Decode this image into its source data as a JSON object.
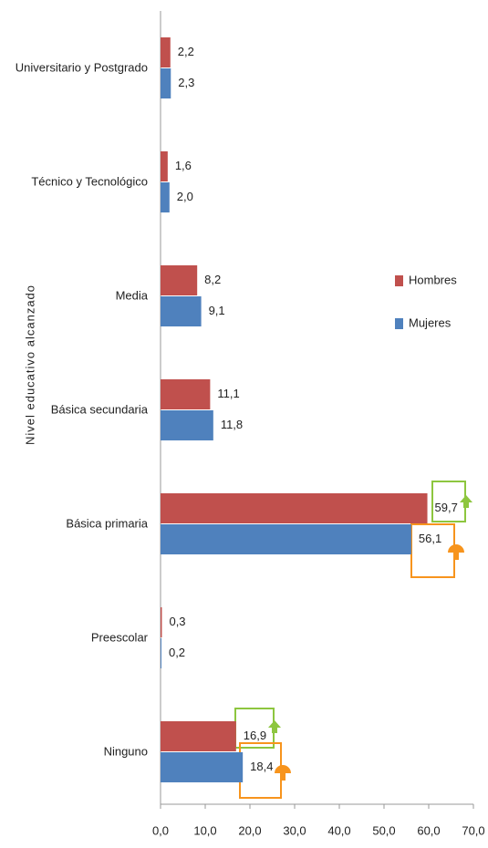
{
  "chart_data": {
    "type": "bar",
    "orientation": "horizontal",
    "y_axis_label": "Nivel educativo alcanzado",
    "categories": [
      "Universitario y Postgrado",
      "Técnico y Tecnológico",
      "Media",
      "Básica secundaria",
      "Básica primaria",
      "Preescolar",
      "Ninguno"
    ],
    "series": [
      {
        "name": "Hombres",
        "color": "#c0504d",
        "values": [
          2.2,
          1.6,
          8.2,
          11.1,
          59.7,
          0.3,
          16.9
        ],
        "value_labels": [
          "2,2",
          "1,6",
          "8,2",
          "11,1",
          "59,7",
          "0,3",
          "16,9"
        ]
      },
      {
        "name": "Mujeres",
        "color": "#4f81bd",
        "values": [
          2.3,
          2.0,
          9.1,
          11.8,
          56.1,
          0.2,
          18.4
        ],
        "value_labels": [
          "2,3",
          "2,0",
          "9,1",
          "11,8",
          "56,1",
          "0,2",
          "18,4"
        ]
      }
    ],
    "xlim": [
      0,
      70
    ],
    "xticks": [
      {
        "value": 0,
        "label": "0,0"
      },
      {
        "value": 10,
        "label": "10,0"
      },
      {
        "value": 20,
        "label": "20,0"
      },
      {
        "value": 30,
        "label": "30,0"
      },
      {
        "value": 40,
        "label": "40,0"
      },
      {
        "value": 50,
        "label": "50,0"
      },
      {
        "value": 60,
        "label": "60,0"
      },
      {
        "value": 70,
        "label": "70,0"
      }
    ],
    "legend": "right"
  }
}
